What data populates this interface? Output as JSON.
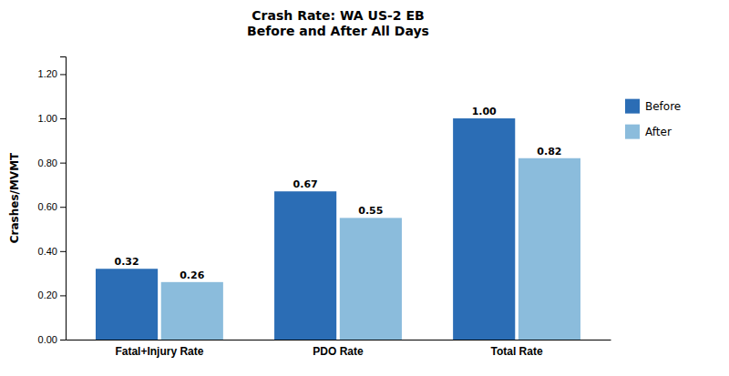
{
  "chart_data": {
    "type": "bar",
    "title": "Crash Rate: WA US-2 EB\nBefore and After All Days",
    "y_label": "Crashes/MVMT",
    "categories": [
      "Fatal+Injury Rate",
      "PDO Rate",
      "Total Rate"
    ],
    "series": [
      {
        "name": "Before",
        "color": "#2B6DB5",
        "values": [
          0.32,
          0.67,
          1.0
        ],
        "value_labels": [
          "0.32",
          "0.67",
          "1.00"
        ]
      },
      {
        "name": "After",
        "color": "#8BBCDC",
        "values": [
          0.26,
          0.55,
          0.82
        ],
        "value_labels": [
          "0.26",
          "0.55",
          "0.82"
        ]
      }
    ],
    "ylim": [
      0,
      1.28
    ],
    "yticks": [
      {
        "value": 0.0,
        "label": "0.00"
      },
      {
        "value": 0.2,
        "label": "0.20"
      },
      {
        "value": 0.4,
        "label": "0.40"
      },
      {
        "value": 0.6,
        "label": "0.60"
      },
      {
        "value": 0.8,
        "label": "0.80"
      },
      {
        "value": 1.0,
        "label": "1.00"
      },
      {
        "value": 1.2,
        "label": "1.20"
      }
    ],
    "data_labels": true,
    "legend": "right",
    "grid": false
  }
}
